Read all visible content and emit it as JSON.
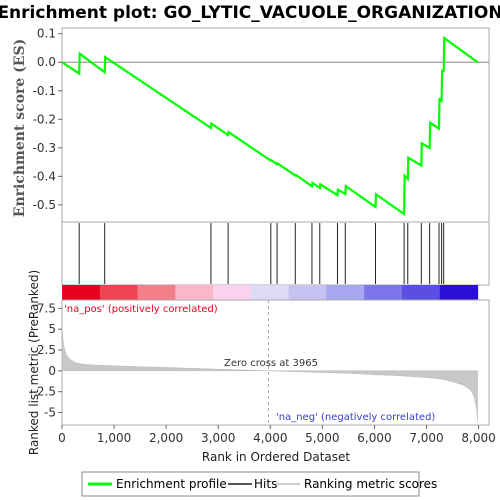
{
  "chart_data": {
    "type": "line",
    "title": "Enrichment plot: GO_LYTIC_VACUOLE_ORGANIZATION",
    "xlabel": "Rank in Ordered Dataset",
    "es_panel": {
      "ylabel": "Enrichment score (ES)",
      "ylim": [
        -0.56,
        0.12
      ],
      "yticks": [
        0.1,
        0.0,
        -0.1,
        -0.2,
        -0.3,
        -0.4,
        -0.5
      ],
      "ytick_labels": [
        "0.1",
        "0.0",
        "-0.1",
        "-0.2",
        "-0.3",
        "-0.4",
        "-0.5"
      ]
    },
    "metric_panel": {
      "ylabel": "Ranked list metric (PreRanked)",
      "ylim": [
        -6.5,
        8.5
      ],
      "yticks": [
        7.5,
        5,
        2.5,
        0,
        -2.5,
        -5
      ],
      "ytick_labels": [
        "7.5",
        "5",
        "2.5",
        "0",
        "-2.5",
        "-5"
      ]
    },
    "xlim": [
      0,
      8200
    ],
    "xticks": [
      0,
      1000,
      2000,
      3000,
      4000,
      5000,
      6000,
      7000,
      8000
    ],
    "xtick_labels": [
      "0",
      "1,000",
      "2,000",
      "3,000",
      "4,000",
      "5,000",
      "6,000",
      "7,000",
      "8,000"
    ],
    "n_genes": 7980,
    "series": [
      {
        "name": "Enrichment profile",
        "color": "#00ff00",
        "x": [
          0,
          330,
          340,
          820,
          830,
          2860,
          2870,
          3190,
          3200,
          4010,
          4020,
          4130,
          4140,
          4480,
          4490,
          4800,
          4810,
          4950,
          4960,
          5290,
          5300,
          5440,
          5450,
          6020,
          6030,
          6570,
          6580,
          6640,
          6650,
          6900,
          6910,
          7060,
          7070,
          7240,
          7250,
          7290,
          7300,
          7330,
          7340,
          7980
        ],
        "y": [
          0.0,
          -0.04,
          0.03,
          -0.035,
          0.018,
          -0.23,
          -0.215,
          -0.255,
          -0.245,
          -0.345,
          -0.343,
          -0.358,
          -0.355,
          -0.397,
          -0.395,
          -0.435,
          -0.423,
          -0.441,
          -0.428,
          -0.466,
          -0.447,
          -0.462,
          -0.434,
          -0.507,
          -0.463,
          -0.532,
          -0.398,
          -0.409,
          -0.335,
          -0.362,
          -0.284,
          -0.301,
          -0.212,
          -0.233,
          -0.13,
          -0.135,
          -0.03,
          -0.03,
          0.085,
          0.0
        ]
      }
    ],
    "hits": [
      330,
      820,
      2860,
      3190,
      4010,
      4130,
      4480,
      4800,
      4950,
      5290,
      5440,
      6020,
      6570,
      6640,
      6900,
      7060,
      7240,
      7290,
      7330
    ],
    "ranked_metric_profile": {
      "x": [
        0,
        30,
        80,
        150,
        250,
        400,
        600,
        1000,
        1500,
        2000,
        2500,
        3000,
        3500,
        3965,
        4500,
        5000,
        5500,
        6000,
        6500,
        7000,
        7300,
        7500,
        7700,
        7850,
        7920,
        7960,
        7980
      ],
      "y": [
        5.2,
        3.0,
        2.0,
        1.4,
        1.0,
        0.8,
        0.7,
        0.6,
        0.5,
        0.4,
        0.3,
        0.2,
        0.1,
        0.0,
        -0.1,
        -0.2,
        -0.3,
        -0.45,
        -0.6,
        -0.8,
        -1.0,
        -1.3,
        -1.7,
        -2.3,
        -3.2,
        -4.5,
        -6.0
      ]
    },
    "color_bar_colors": [
      "#e8001e",
      "#ee4451",
      "#f47f88",
      "#f9b7c9",
      "#fbd3ee",
      "#ded9f7",
      "#c6c3f2",
      "#a9a6f0",
      "#7b74ea",
      "#5a4ee3",
      "#2a0fd6"
    ],
    "annotations": {
      "pos_label": "'na_pos' (positively correlated)",
      "neg_label": "'na_neg' (negatively correlated)",
      "zero_cross": "Zero cross at 3965",
      "zero_cross_x": 3965
    },
    "legend": {
      "placement": "bottom",
      "items": [
        {
          "label": "Enrichment profile",
          "color": "#00ff00"
        },
        {
          "label": "Hits",
          "color": "#555555"
        },
        {
          "label": "Ranking metric scores",
          "color": "#cccccc"
        }
      ]
    },
    "grid": false
  }
}
